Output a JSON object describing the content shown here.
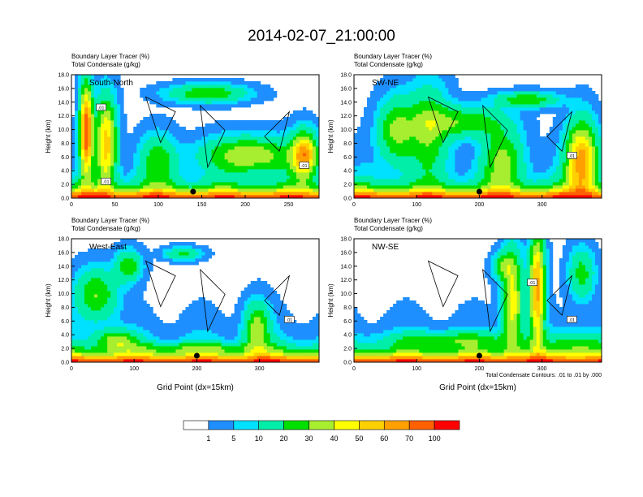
{
  "title": "2014-02-07_21:00:00",
  "chart_data": {
    "type": "heatmap",
    "panels": [
      {
        "name": "South-North",
        "subtitle_line1": "Boundary Layer Tracer   (%)",
        "subtitle_line2": "Total Condensate   (g/kg)",
        "ylabel": "Height (km)",
        "xlabel": "",
        "ylim": [
          0,
          18
        ],
        "xlim": [
          0,
          285
        ],
        "xticks": [
          "0",
          "50",
          "100",
          "150",
          "200",
          "250"
        ],
        "xtick_values": [
          0,
          50,
          100,
          150,
          200,
          250
        ],
        "yticks": [
          "0.0",
          "2.0",
          "4.0",
          "6.0",
          "8.0",
          "10.0",
          "12.0",
          "14.0",
          "16.0",
          "18.0"
        ],
        "marker_x": 140,
        "contour_labels": [
          ".01",
          ".01",
          ".01"
        ]
      },
      {
        "name": "SW-NE",
        "subtitle_line1": "Boundary Layer Tracer   (%)",
        "subtitle_line2": "Total Condensate   (g/kg)",
        "ylabel": "Height (km)",
        "xlabel": "",
        "ylim": [
          0,
          18
        ],
        "xlim": [
          0,
          395
        ],
        "xticks": [
          "0",
          "100",
          "200",
          "300"
        ],
        "xtick_values": [
          0,
          100,
          200,
          300
        ],
        "yticks": [
          "0.0",
          "2.0",
          "4.0",
          "6.0",
          "8.0",
          "10.0",
          "12.0",
          "14.0",
          "16.0",
          "18.0"
        ],
        "marker_x": 200,
        "contour_labels": [
          ".01"
        ]
      },
      {
        "name": "West-East",
        "subtitle_line1": "Boundary Layer Tracer   (%)",
        "subtitle_line2": "Total Condensate   (g/kg)",
        "ylabel": "Height (km)",
        "xlabel": "Grid Point (dx=15km)",
        "ylim": [
          0,
          18
        ],
        "xlim": [
          0,
          395
        ],
        "xticks": [
          "0",
          "100",
          "200",
          "300"
        ],
        "xtick_values": [
          0,
          100,
          200,
          300
        ],
        "yticks": [
          "0.0",
          "2.0",
          "4.0",
          "6.0",
          "8.0",
          "10.0",
          "12.0",
          "14.0",
          "16.0",
          "18.0"
        ],
        "marker_x": 200,
        "contour_labels": [
          ".01"
        ]
      },
      {
        "name": "NW-SE",
        "subtitle_line1": "Boundary Layer Tracer   (%)",
        "subtitle_line2": "Total Condensate   (g/kg)",
        "ylabel": "Height (km)",
        "xlabel": "Grid Point (dx=15km)",
        "ylim": [
          0,
          18
        ],
        "xlim": [
          0,
          395
        ],
        "xticks": [
          "0",
          "100",
          "200",
          "300"
        ],
        "xtick_values": [
          0,
          100,
          200,
          300
        ],
        "yticks": [
          "0.0",
          "2.0",
          "4.0",
          "6.0",
          "8.0",
          "10.0",
          "12.0",
          "14.0",
          "16.0",
          "18.0"
        ],
        "marker_x": 200,
        "contour_labels": [
          ".01",
          ".01"
        ],
        "contour_note": "Total Condensate Contours: .01 to .01 by .000"
      }
    ],
    "colorbar": {
      "labels": [
        "1",
        "5",
        "10",
        "20",
        "30",
        "40",
        "50",
        "60",
        "70",
        "100"
      ],
      "colors": [
        "#ffffff",
        "#1f8fff",
        "#00e0ff",
        "#00eea8",
        "#00e000",
        "#a8ee30",
        "#ffff00",
        "#ffd000",
        "#ffa000",
        "#ff6000",
        "#ff0000"
      ]
    }
  }
}
